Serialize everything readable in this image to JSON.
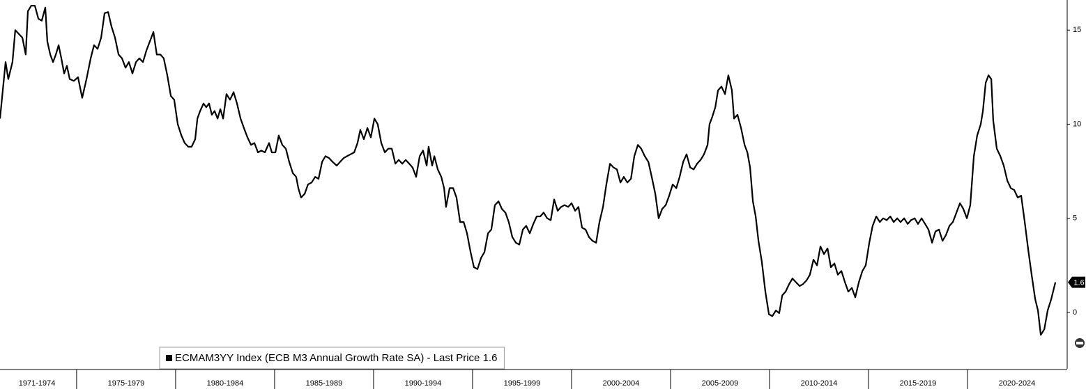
{
  "chart_data": {
    "type": "line",
    "xlim": [
      1971.13,
      2025
    ],
    "ylim": [
      -3,
      16.6
    ],
    "yticks": [
      0,
      5,
      10,
      15
    ],
    "xticks": [
      1975,
      1980,
      1985,
      1990,
      1995,
      2000,
      2005,
      2010,
      2015,
      2020
    ],
    "periods": [
      {
        "label": "1971-1974",
        "start": 1971,
        "end": 1975
      },
      {
        "label": "1975-1979",
        "start": 1975,
        "end": 1980
      },
      {
        "label": "1980-1984",
        "start": 1980,
        "end": 1985
      },
      {
        "label": "1985-1989",
        "start": 1985,
        "end": 1990
      },
      {
        "label": "1990-1994",
        "start": 1990,
        "end": 1995
      },
      {
        "label": "1995-1999",
        "start": 1995,
        "end": 2000
      },
      {
        "label": "2000-2004",
        "start": 2000,
        "end": 2005
      },
      {
        "label": "2005-2009",
        "start": 2005,
        "end": 2010
      },
      {
        "label": "2010-2014",
        "start": 2010,
        "end": 2015
      },
      {
        "label": "2015-2019",
        "start": 2015,
        "end": 2020
      },
      {
        "label": "2020-2024",
        "start": 2020,
        "end": 2025
      }
    ],
    "x": [
      1971.13,
      1971.41,
      1971.55,
      1971.76,
      1971.9,
      1972.08,
      1972.26,
      1972.43,
      1972.54,
      1972.71,
      1972.89,
      1973.07,
      1973.24,
      1973.42,
      1973.52,
      1973.67,
      1973.81,
      1973.95,
      1974.09,
      1974.23,
      1974.37,
      1974.51,
      1974.65,
      1974.86,
      1975.07,
      1975.28,
      1975.5,
      1975.71,
      1975.88,
      1976.06,
      1976.24,
      1976.41,
      1976.59,
      1976.76,
      1976.94,
      1977.12,
      1977.29,
      1977.47,
      1977.64,
      1977.82,
      1978.0,
      1978.17,
      1978.35,
      1978.52,
      1978.7,
      1978.88,
      1979.05,
      1979.23,
      1979.4,
      1979.58,
      1979.76,
      1979.93,
      1980.11,
      1980.29,
      1980.46,
      1980.64,
      1980.81,
      1980.99,
      1981.1,
      1981.24,
      1981.41,
      1981.55,
      1981.69,
      1981.83,
      1981.97,
      1982.12,
      1982.26,
      1982.4,
      1982.57,
      1982.75,
      1982.93,
      1983.1,
      1983.28,
      1983.45,
      1983.63,
      1983.81,
      1983.98,
      1984.16,
      1984.33,
      1984.51,
      1984.72,
      1984.86,
      1985.04,
      1985.21,
      1985.39,
      1985.57,
      1985.74,
      1985.92,
      1986.09,
      1986.2,
      1986.34,
      1986.52,
      1986.69,
      1986.87,
      1987.05,
      1987.22,
      1987.4,
      1987.57,
      1987.75,
      1987.93,
      1988.14,
      1988.31,
      1988.49,
      1988.66,
      1988.84,
      1989.02,
      1989.19,
      1989.33,
      1989.51,
      1989.69,
      1989.86,
      1990.04,
      1990.21,
      1990.39,
      1990.57,
      1990.74,
      1990.92,
      1991.1,
      1991.27,
      1991.45,
      1991.62,
      1991.8,
      1991.97,
      1992.15,
      1992.33,
      1992.5,
      1992.68,
      1992.78,
      1992.96,
      1993.07,
      1993.24,
      1993.42,
      1993.56,
      1993.66,
      1993.84,
      1994.02,
      1994.19,
      1994.37,
      1994.55,
      1994.72,
      1994.9,
      1995.07,
      1995.25,
      1995.43,
      1995.6,
      1995.78,
      1995.95,
      1996.13,
      1996.31,
      1996.48,
      1996.66,
      1996.83,
      1997.01,
      1997.19,
      1997.36,
      1997.54,
      1997.71,
      1997.89,
      1998.07,
      1998.24,
      1998.42,
      1998.59,
      1998.77,
      1998.95,
      1999.12,
      1999.3,
      1999.47,
      1999.65,
      1999.83,
      2000.0,
      2000.18,
      2000.35,
      2000.53,
      2000.71,
      2000.88,
      2001.06,
      2001.24,
      2001.41,
      2001.59,
      2001.76,
      2001.94,
      2002.12,
      2002.29,
      2002.47,
      2002.64,
      2002.82,
      2003.0,
      2003.17,
      2003.35,
      2003.52,
      2003.7,
      2003.88,
      2004.05,
      2004.23,
      2004.4,
      2004.58,
      2004.76,
      2004.93,
      2005.11,
      2005.29,
      2005.46,
      2005.64,
      2005.81,
      2005.99,
      2006.17,
      2006.34,
      2006.52,
      2006.69,
      2006.87,
      2006.97,
      2007.11,
      2007.26,
      2007.4,
      2007.57,
      2007.75,
      2007.92,
      2008.1,
      2008.21,
      2008.38,
      2008.56,
      2008.74,
      2008.88,
      2009.02,
      2009.16,
      2009.3,
      2009.44,
      2009.61,
      2009.79,
      2009.97,
      2010.14,
      2010.32,
      2010.49,
      2010.64,
      2010.81,
      2010.99,
      2011.16,
      2011.34,
      2011.52,
      2011.69,
      2011.87,
      2012.04,
      2012.22,
      2012.4,
      2012.57,
      2012.75,
      2012.93,
      2013.1,
      2013.28,
      2013.45,
      2013.63,
      2013.81,
      2013.98,
      2014.16,
      2014.33,
      2014.51,
      2014.69,
      2014.86,
      2015.04,
      2015.21,
      2015.39,
      2015.57,
      2015.74,
      2015.92,
      2016.1,
      2016.27,
      2016.45,
      2016.62,
      2016.8,
      2016.98,
      2017.15,
      2017.33,
      2017.5,
      2017.68,
      2017.86,
      2018.03,
      2018.21,
      2018.38,
      2018.56,
      2018.74,
      2018.91,
      2019.09,
      2019.26,
      2019.44,
      2019.62,
      2019.79,
      2019.97,
      2020.14,
      2020.32,
      2020.49,
      2020.67,
      2020.78,
      2020.92,
      2021.06,
      2021.2,
      2021.3,
      2021.48,
      2021.66,
      2021.83,
      2022.01,
      2022.19,
      2022.36,
      2022.54,
      2022.71,
      2022.89,
      2023.07,
      2023.24,
      2023.42,
      2023.56,
      2023.7,
      2023.88,
      2024.05,
      2024.23,
      2024.44
    ],
    "series": [
      {
        "name": "ECMAM3YY Index (ECB M3 Annual Growth Rate SA) - Last Price 1.6",
        "color": "#000000",
        "values": [
          10.3,
          13.3,
          12.4,
          13.3,
          15.0,
          14.8,
          14.6,
          13.7,
          16.0,
          16.3,
          16.3,
          15.6,
          15.5,
          16.2,
          14.4,
          13.7,
          13.3,
          13.7,
          14.2,
          13.5,
          12.7,
          13.1,
          12.4,
          12.3,
          12.5,
          11.4,
          12.4,
          13.5,
          14.2,
          14.0,
          14.6,
          15.9,
          15.96,
          15.2,
          14.6,
          13.7,
          13.5,
          13.0,
          13.3,
          12.7,
          13.3,
          13.5,
          13.3,
          13.9,
          14.4,
          14.9,
          13.7,
          13.7,
          13.5,
          12.6,
          11.5,
          11.3,
          10.0,
          9.4,
          9.0,
          8.8,
          8.8,
          9.2,
          10.3,
          10.7,
          11.1,
          10.9,
          11.1,
          10.5,
          10.7,
          10.3,
          10.8,
          10.3,
          11.6,
          11.3,
          11.7,
          11.1,
          10.3,
          9.8,
          9.3,
          8.9,
          9.0,
          8.5,
          8.6,
          8.5,
          9.0,
          8.5,
          8.5,
          9.4,
          8.9,
          8.7,
          8.0,
          7.4,
          7.2,
          6.6,
          6.1,
          6.3,
          6.8,
          6.9,
          7.2,
          7.1,
          8.0,
          8.3,
          8.2,
          8.0,
          7.8,
          8.0,
          8.2,
          8.3,
          8.4,
          8.5,
          9.0,
          9.7,
          9.2,
          9.8,
          9.3,
          10.3,
          10.0,
          9.0,
          8.5,
          8.7,
          8.7,
          7.9,
          8.1,
          7.9,
          8.1,
          7.9,
          7.7,
          7.2,
          8.3,
          8.6,
          7.8,
          8.8,
          7.8,
          8.3,
          7.6,
          7.2,
          6.6,
          5.6,
          6.6,
          6.6,
          6.1,
          4.8,
          4.8,
          4.2,
          3.2,
          2.4,
          2.3,
          2.9,
          3.2,
          4.2,
          4.4,
          5.7,
          5.9,
          5.5,
          5.3,
          4.8,
          4.0,
          3.7,
          3.6,
          4.4,
          4.6,
          4.2,
          4.7,
          5.1,
          5.1,
          5.3,
          5.0,
          4.9,
          6.0,
          5.4,
          5.6,
          5.7,
          5.6,
          5.8,
          5.4,
          5.6,
          4.5,
          4.4,
          4.0,
          3.8,
          3.7,
          4.8,
          5.6,
          6.8,
          7.9,
          7.7,
          7.6,
          6.9,
          7.2,
          6.9,
          7.1,
          8.3,
          8.9,
          8.7,
          8.3,
          8.0,
          7.2,
          6.3,
          5.0,
          5.5,
          5.7,
          6.2,
          6.8,
          6.6,
          7.2,
          8.0,
          8.4,
          7.7,
          7.6,
          7.9,
          8.1,
          8.4,
          8.9,
          10.0,
          10.4,
          10.9,
          11.8,
          12.0,
          11.6,
          12.6,
          11.8,
          10.3,
          10.5,
          9.8,
          8.9,
          8.5,
          7.7,
          5.9,
          5.1,
          3.8,
          2.7,
          1.1,
          -0.1,
          -0.2,
          0.1,
          -0.04,
          0.9,
          1.1,
          1.5,
          1.8,
          1.6,
          1.4,
          1.5,
          1.7,
          2.0,
          2.8,
          2.5,
          3.5,
          3.1,
          3.4,
          2.4,
          2.6,
          2.0,
          2.2,
          1.6,
          1.1,
          1.3,
          0.8,
          1.6,
          2.2,
          2.5,
          3.7,
          4.6,
          5.1,
          4.8,
          5.0,
          4.9,
          5.1,
          4.8,
          5.0,
          4.8,
          5.0,
          4.7,
          4.9,
          5.0,
          4.7,
          5.0,
          4.7,
          4.4,
          3.7,
          4.3,
          4.4,
          3.8,
          4.1,
          4.6,
          4.8,
          5.3,
          5.8,
          5.5,
          5.0,
          5.7,
          8.3,
          9.4,
          10.0,
          10.7,
          12.2,
          12.6,
          12.4,
          10.2,
          8.7,
          8.3,
          7.8,
          7.0,
          6.6,
          6.5,
          6.1,
          6.2,
          4.8,
          3.3,
          2.0,
          0.7,
          0.1,
          -1.2,
          -0.9,
          0.1,
          0.7,
          1.6
        ]
      }
    ]
  }
}
